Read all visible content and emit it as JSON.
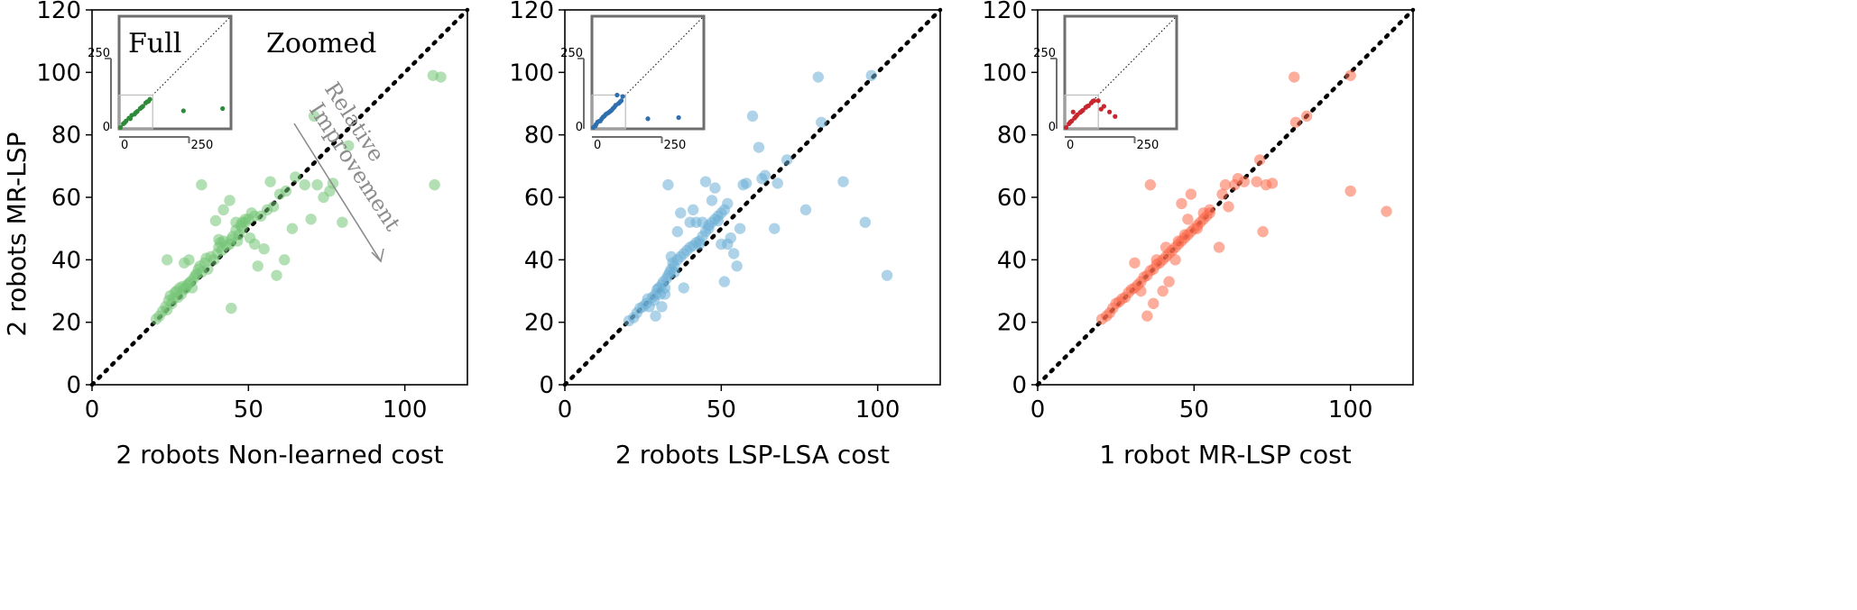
{
  "figure": {
    "ylabel": "2 robots MR-LSP"
  },
  "chart_data": [
    {
      "type": "scatter",
      "xlabel": "2 robots Non-learned cost",
      "xlim": [
        0,
        120
      ],
      "ylim": [
        0,
        120
      ],
      "xticks": [
        0,
        50,
        100
      ],
      "yticks": [
        0,
        20,
        40,
        60,
        80,
        100,
        120
      ],
      "color": "#74c476",
      "diagonal": true,
      "points": [
        [
          20.5,
          21
        ],
        [
          21.5,
          22
        ],
        [
          22.5,
          23.5
        ],
        [
          23.5,
          25
        ],
        [
          24,
          24
        ],
        [
          24.5,
          27
        ],
        [
          25,
          28.5
        ],
        [
          25.5,
          26
        ],
        [
          26,
          27.5
        ],
        [
          26.5,
          29.5
        ],
        [
          27,
          30
        ],
        [
          27.5,
          28
        ],
        [
          28,
          31
        ],
        [
          28.5,
          29
        ],
        [
          29,
          31.5
        ],
        [
          29.5,
          30.5
        ],
        [
          30,
          31
        ],
        [
          30.5,
          32
        ],
        [
          31,
          32.5
        ],
        [
          31.5,
          33
        ],
        [
          32,
          31
        ],
        [
          32.5,
          34
        ],
        [
          33,
          35
        ],
        [
          33.5,
          35.5
        ],
        [
          34,
          37
        ],
        [
          34.5,
          38
        ],
        [
          35,
          36
        ],
        [
          36,
          39
        ],
        [
          36.5,
          40.5
        ],
        [
          37,
          37
        ],
        [
          38,
          41
        ],
        [
          39,
          40
        ],
        [
          40,
          42
        ],
        [
          40.5,
          44
        ],
        [
          41,
          45.5
        ],
        [
          41.5,
          43
        ],
        [
          42,
          46
        ],
        [
          43,
          44.5
        ],
        [
          44,
          45
        ],
        [
          44.5,
          46.5
        ],
        [
          45,
          47.5
        ],
        [
          46,
          49.5
        ],
        [
          46.5,
          46
        ],
        [
          47,
          48
        ],
        [
          47.5,
          51
        ],
        [
          48,
          50
        ],
        [
          49,
          52
        ],
        [
          50,
          53
        ],
        [
          51,
          55
        ],
        [
          52,
          54
        ],
        [
          24,
          40
        ],
        [
          29.5,
          39
        ],
        [
          31,
          40
        ],
        [
          35,
          64
        ],
        [
          39.5,
          52.5
        ],
        [
          40.5,
          46.5
        ],
        [
          42,
          56
        ],
        [
          44,
          59
        ],
        [
          44.5,
          24.5
        ],
        [
          46,
          52
        ],
        [
          48,
          52
        ],
        [
          49,
          53
        ],
        [
          50.5,
          47
        ],
        [
          52,
          45
        ],
        [
          53,
          38
        ],
        [
          54,
          54
        ],
        [
          55,
          43.5
        ],
        [
          56,
          56
        ],
        [
          57,
          65
        ],
        [
          58,
          57
        ],
        [
          59,
          35
        ],
        [
          60,
          61
        ],
        [
          61.5,
          40
        ],
        [
          62,
          62
        ],
        [
          64,
          50
        ],
        [
          65,
          66.5
        ],
        [
          68,
          64
        ],
        [
          70,
          53
        ],
        [
          71,
          86
        ],
        [
          72,
          64
        ],
        [
          74,
          60
        ],
        [
          76,
          62
        ],
        [
          77,
          64.5
        ],
        [
          80,
          52
        ],
        [
          82,
          76.5
        ],
        [
          109,
          99
        ],
        [
          109.5,
          64
        ],
        [
          111.5,
          98.5
        ]
      ],
      "inset": {
        "label_full": "Full",
        "label_zoomed": "Zoomed",
        "xtick_labels": [
          "0",
          "250"
        ],
        "ytick_labels": [
          "0",
          "250"
        ],
        "color": "#2e8b3a",
        "points": [
          [
            5,
            5
          ],
          [
            15,
            18
          ],
          [
            25,
            28
          ],
          [
            35,
            38
          ],
          [
            45,
            48
          ],
          [
            55,
            52
          ],
          [
            65,
            62
          ],
          [
            75,
            72
          ],
          [
            85,
            80
          ],
          [
            95,
            92
          ],
          [
            105,
            98
          ],
          [
            20,
            22
          ],
          [
            40,
            36
          ],
          [
            60,
            58
          ],
          [
            80,
            76
          ],
          [
            100,
            96
          ],
          [
            110,
            105
          ],
          [
            230,
            64
          ],
          [
            370,
            72
          ]
        ]
      },
      "annotation": "Relative Improvement"
    },
    {
      "type": "scatter",
      "xlabel": "2 robots LSP-LSA cost",
      "xlim": [
        0,
        120
      ],
      "ylim": [
        0,
        120
      ],
      "xticks": [
        0,
        50,
        100
      ],
      "yticks": [
        0,
        20,
        40,
        60,
        80,
        100,
        120
      ],
      "color": "#6baed6",
      "diagonal": true,
      "points": [
        [
          20.5,
          20.5
        ],
        [
          22,
          21.5
        ],
        [
          23,
          23
        ],
        [
          24,
          24.5
        ],
        [
          25,
          25
        ],
        [
          26,
          26
        ],
        [
          26.5,
          27.5
        ],
        [
          27,
          25
        ],
        [
          28,
          28
        ],
        [
          28.5,
          27
        ],
        [
          29,
          29
        ],
        [
          29.5,
          30.5
        ],
        [
          30,
          31
        ],
        [
          30.5,
          29
        ],
        [
          31,
          32
        ],
        [
          31.5,
          33
        ],
        [
          32,
          31
        ],
        [
          32.5,
          34
        ],
        [
          33,
          35
        ],
        [
          33.5,
          36
        ],
        [
          34,
          37
        ],
        [
          34.5,
          39
        ],
        [
          35,
          38
        ],
        [
          36,
          40
        ],
        [
          37,
          41
        ],
        [
          38,
          42
        ],
        [
          39,
          43
        ],
        [
          40,
          44
        ],
        [
          41,
          44.5
        ],
        [
          42,
          45.5
        ],
        [
          43,
          46
        ],
        [
          44,
          47.5
        ],
        [
          45,
          49
        ],
        [
          46,
          50
        ],
        [
          47,
          52
        ],
        [
          48,
          53
        ],
        [
          49,
          54
        ],
        [
          50,
          55
        ],
        [
          51,
          56
        ],
        [
          52,
          58
        ],
        [
          29,
          22
        ],
        [
          31,
          25
        ],
        [
          32,
          29
        ],
        [
          33,
          64
        ],
        [
          34,
          41
        ],
        [
          35,
          36
        ],
        [
          36,
          49
        ],
        [
          37,
          55
        ],
        [
          38,
          31
        ],
        [
          40,
          52
        ],
        [
          41,
          56
        ],
        [
          42,
          52
        ],
        [
          43,
          45
        ],
        [
          44,
          52
        ],
        [
          45,
          65
        ],
        [
          46,
          51
        ],
        [
          47,
          59
        ],
        [
          48,
          63
        ],
        [
          49,
          52.5
        ],
        [
          50,
          45
        ],
        [
          51,
          33
        ],
        [
          52,
          45
        ],
        [
          53,
          47
        ],
        [
          54,
          42
        ],
        [
          55,
          38
        ],
        [
          56,
          50
        ],
        [
          57,
          64
        ],
        [
          58,
          64.5
        ],
        [
          60,
          86
        ],
        [
          62,
          76
        ],
        [
          63,
          66
        ],
        [
          64,
          67
        ],
        [
          67,
          50
        ],
        [
          68,
          64.5
        ],
        [
          71,
          72
        ],
        [
          77,
          56
        ],
        [
          81,
          98.5
        ],
        [
          82,
          84
        ],
        [
          89,
          65
        ],
        [
          96,
          52
        ],
        [
          98,
          99
        ],
        [
          103,
          35
        ]
      ],
      "inset": {
        "xtick_labels": [
          "0",
          "250"
        ],
        "ytick_labels": [
          "0",
          "250"
        ],
        "color": "#2f6fae",
        "points": [
          [
            5,
            5
          ],
          [
            15,
            16
          ],
          [
            25,
            27
          ],
          [
            35,
            36
          ],
          [
            45,
            46
          ],
          [
            55,
            55
          ],
          [
            65,
            62
          ],
          [
            75,
            72
          ],
          [
            85,
            84
          ],
          [
            95,
            90
          ],
          [
            105,
            100
          ],
          [
            20,
            24
          ],
          [
            40,
            42
          ],
          [
            60,
            58
          ],
          [
            80,
            77
          ],
          [
            100,
            95
          ],
          [
            12,
            10
          ],
          [
            30,
            28
          ],
          [
            50,
            52
          ],
          [
            70,
            66
          ],
          [
            200,
            36
          ],
          [
            310,
            40
          ],
          [
            90,
            120
          ],
          [
            110,
            115
          ]
        ]
      }
    },
    {
      "type": "scatter",
      "xlabel": "1 robot MR-LSP cost",
      "xlim": [
        0,
        120
      ],
      "ylim": [
        0,
        120
      ],
      "xticks": [
        0,
        50,
        100
      ],
      "yticks": [
        0,
        20,
        40,
        60,
        80,
        100,
        120
      ],
      "color": "#fb6a4a",
      "diagonal": true,
      "points": [
        [
          20.5,
          21
        ],
        [
          22,
          22
        ],
        [
          23,
          23
        ],
        [
          24,
          24.5
        ],
        [
          25,
          26
        ],
        [
          26,
          26.5
        ],
        [
          27,
          27.5
        ],
        [
          28,
          28
        ],
        [
          29,
          29.5
        ],
        [
          30,
          30.5
        ],
        [
          31,
          31
        ],
        [
          32,
          32
        ],
        [
          33,
          33
        ],
        [
          34,
          34.5
        ],
        [
          35,
          35
        ],
        [
          36,
          36.5
        ],
        [
          37,
          37
        ],
        [
          38,
          38.5
        ],
        [
          39,
          39
        ],
        [
          40,
          40
        ],
        [
          41,
          41
        ],
        [
          42,
          42
        ],
        [
          43,
          43
        ],
        [
          44,
          44
        ],
        [
          45,
          45
        ],
        [
          46,
          46
        ],
        [
          47,
          47
        ],
        [
          48,
          48
        ],
        [
          49,
          49
        ],
        [
          50,
          50
        ],
        [
          51,
          51
        ],
        [
          52,
          52
        ],
        [
          53,
          53
        ],
        [
          54,
          54
        ],
        [
          55,
          55
        ],
        [
          31,
          39
        ],
        [
          33,
          30
        ],
        [
          35,
          22
        ],
        [
          36,
          64
        ],
        [
          37,
          26
        ],
        [
          38,
          40
        ],
        [
          40,
          30
        ],
        [
          41,
          44
        ],
        [
          42,
          33
        ],
        [
          44,
          40
        ],
        [
          45,
          46
        ],
        [
          46,
          58
        ],
        [
          47,
          48
        ],
        [
          48,
          53
        ],
        [
          49,
          61
        ],
        [
          51,
          50
        ],
        [
          53,
          55
        ],
        [
          55,
          56
        ],
        [
          58,
          44
        ],
        [
          59,
          61
        ],
        [
          60,
          64
        ],
        [
          61,
          57
        ],
        [
          63,
          64
        ],
        [
          64,
          66
        ],
        [
          66,
          65
        ],
        [
          70,
          65
        ],
        [
          71,
          72
        ],
        [
          72,
          49
        ],
        [
          73,
          64
        ],
        [
          75,
          64.5
        ],
        [
          82,
          98.5
        ],
        [
          82.5,
          84
        ],
        [
          86,
          86
        ],
        [
          100,
          99
        ],
        [
          100,
          62
        ],
        [
          111.5,
          55.5
        ]
      ],
      "inset": {
        "xtick_labels": [
          "0",
          "250"
        ],
        "ytick_labels": [
          "0",
          "250"
        ],
        "color": "#c8262e",
        "points": [
          [
            5,
            5
          ],
          [
            15,
            18
          ],
          [
            25,
            28
          ],
          [
            35,
            38
          ],
          [
            45,
            50
          ],
          [
            55,
            58
          ],
          [
            65,
            66
          ],
          [
            75,
            76
          ],
          [
            85,
            82
          ],
          [
            95,
            92
          ],
          [
            105,
            100
          ],
          [
            20,
            24
          ],
          [
            40,
            44
          ],
          [
            60,
            62
          ],
          [
            80,
            80
          ],
          [
            100,
            98
          ],
          [
            120,
            100
          ],
          [
            140,
            80
          ],
          [
            160,
            60
          ],
          [
            180,
            44
          ],
          [
            130,
            70
          ],
          [
            30,
            60
          ]
        ]
      }
    }
  ]
}
